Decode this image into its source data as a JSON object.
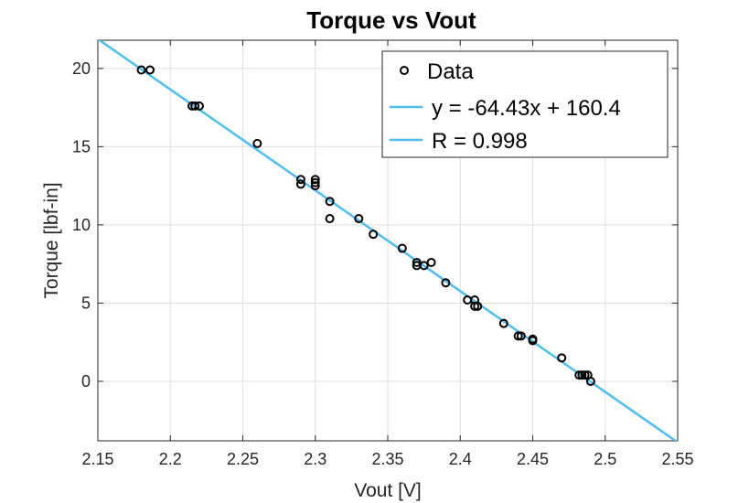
{
  "chart_data": {
    "type": "scatter",
    "title": "Torque vs Vout",
    "xlabel": "Vout [V]",
    "ylabel": "Torque [lbf-in]",
    "xlim": [
      2.15,
      2.55
    ],
    "ylim": [
      -3.8,
      21.8
    ],
    "xticks": [
      2.15,
      2.2,
      2.25,
      2.3,
      2.35,
      2.4,
      2.45,
      2.5,
      2.55
    ],
    "xtick_labels": [
      "2.15",
      "2.2",
      "2.25",
      "2.3",
      "2.35",
      "2.4",
      "2.45",
      "2.5",
      "2.55"
    ],
    "yticks": [
      0,
      5,
      10,
      15,
      20
    ],
    "ytick_labels": [
      "0",
      "5",
      "10",
      "15",
      "20"
    ],
    "grid": true,
    "legend_position": "top-right",
    "series": [
      {
        "name": "Data",
        "marker": "circle",
        "color": "#000000",
        "points": [
          {
            "x": 2.18,
            "y": 19.9
          },
          {
            "x": 2.186,
            "y": 19.9
          },
          {
            "x": 2.215,
            "y": 17.6
          },
          {
            "x": 2.217,
            "y": 17.6
          },
          {
            "x": 2.22,
            "y": 17.6
          },
          {
            "x": 2.26,
            "y": 15.2
          },
          {
            "x": 2.29,
            "y": 12.9
          },
          {
            "x": 2.29,
            "y": 12.6
          },
          {
            "x": 2.3,
            "y": 12.9
          },
          {
            "x": 2.3,
            "y": 12.7
          },
          {
            "x": 2.3,
            "y": 12.5
          },
          {
            "x": 2.31,
            "y": 11.5
          },
          {
            "x": 2.31,
            "y": 10.4
          },
          {
            "x": 2.33,
            "y": 10.4
          },
          {
            "x": 2.34,
            "y": 9.4
          },
          {
            "x": 2.36,
            "y": 8.5
          },
          {
            "x": 2.37,
            "y": 7.6
          },
          {
            "x": 2.37,
            "y": 7.4
          },
          {
            "x": 2.375,
            "y": 7.4
          },
          {
            "x": 2.38,
            "y": 7.6
          },
          {
            "x": 2.39,
            "y": 6.3
          },
          {
            "x": 2.405,
            "y": 5.2
          },
          {
            "x": 2.41,
            "y": 5.2
          },
          {
            "x": 2.41,
            "y": 4.8
          },
          {
            "x": 2.412,
            "y": 4.8
          },
          {
            "x": 2.43,
            "y": 3.7
          },
          {
            "x": 2.44,
            "y": 2.9
          },
          {
            "x": 2.442,
            "y": 2.9
          },
          {
            "x": 2.45,
            "y": 2.7
          },
          {
            "x": 2.45,
            "y": 2.6
          },
          {
            "x": 2.47,
            "y": 1.5
          },
          {
            "x": 2.482,
            "y": 0.4
          },
          {
            "x": 2.484,
            "y": 0.4
          },
          {
            "x": 2.486,
            "y": 0.4
          },
          {
            "x": 2.488,
            "y": 0.4
          },
          {
            "x": 2.49,
            "y": 0.0
          }
        ]
      },
      {
        "name": "y = -64.43x + 160.4",
        "type": "line",
        "color": "#4DBEEE",
        "slope": -64.43,
        "intercept": 160.4
      },
      {
        "name": "R = 0.998",
        "type": "line",
        "color": "#4DBEEE"
      }
    ]
  }
}
